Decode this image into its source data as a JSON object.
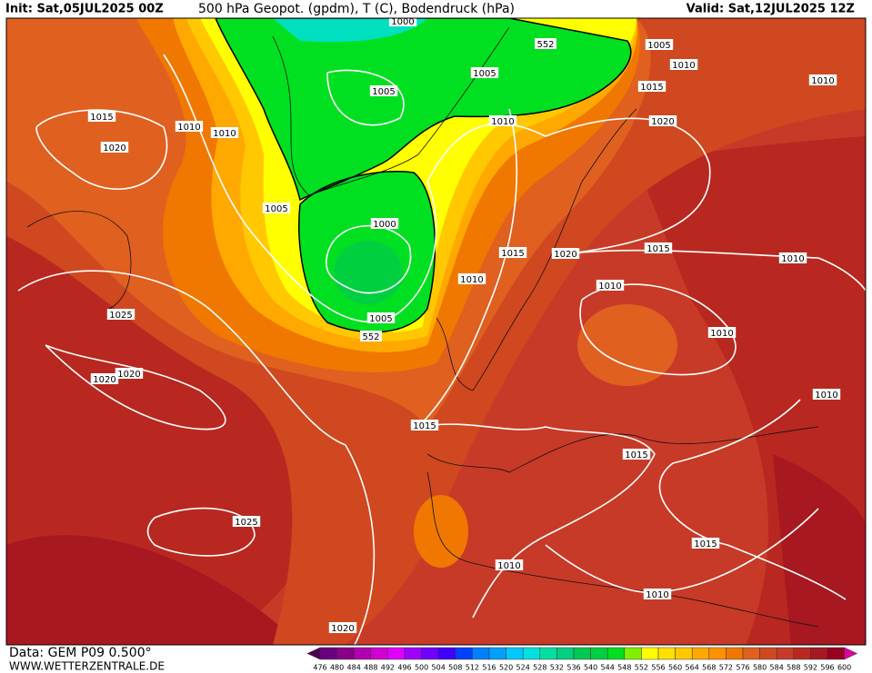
{
  "header": {
    "init": "Init: Sat,05JUL2025 00Z",
    "title": "500 hPa Geopot. (gpdm), T (C), Bodendruck (hPa)",
    "valid": "Valid: Sat,12JUL2025 12Z"
  },
  "footer": {
    "data": "Data: GEM P09 0.500°",
    "site": "WWW.WETTERZENTRALE.DE"
  },
  "legend": {
    "labels": [
      "476",
      "480",
      "484",
      "488",
      "492",
      "496",
      "500",
      "504",
      "508",
      "512",
      "516",
      "520",
      "524",
      "528",
      "532",
      "536",
      "540",
      "544",
      "548",
      "552",
      "556",
      "560",
      "564",
      "568",
      "572",
      "576",
      "580",
      "584",
      "588",
      "592",
      "596",
      "600"
    ],
    "colors": [
      "#4b0050",
      "#6a0080",
      "#8a008a",
      "#b000b0",
      "#d000d0",
      "#e000ff",
      "#a000ff",
      "#7000ff",
      "#4000ff",
      "#0040ff",
      "#0080ff",
      "#00a0ff",
      "#00c8ff",
      "#00e0e0",
      "#00e0a0",
      "#00d080",
      "#00c850",
      "#00d040",
      "#00e020",
      "#80f000",
      "#ffff00",
      "#ffe000",
      "#ffc800",
      "#ffa800",
      "#ff9000",
      "#f07800",
      "#e06020",
      "#d04820",
      "#c83a28",
      "#b82820",
      "#a81820",
      "#980020",
      "#e000a0"
    ]
  },
  "isobar_labels": [
    "1000",
    "1005",
    "1010",
    "552",
    "1005",
    "1015",
    "1010",
    "1005",
    "1015",
    "1010",
    "1010",
    "1010",
    "1020",
    "1020",
    "1005",
    "1000",
    "1015",
    "1020",
    "1015",
    "1010",
    "1010",
    "1010",
    "1025",
    "1005",
    "552",
    "1010",
    "1020",
    "1020",
    "1010",
    "1015",
    "1015",
    "1025",
    "1015",
    "1010",
    "1010",
    "1020"
  ]
}
